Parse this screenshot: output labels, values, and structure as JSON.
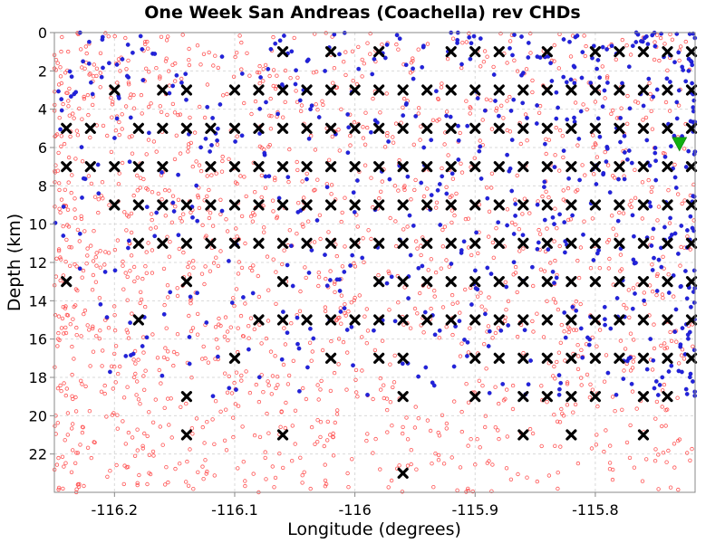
{
  "chart_data": {
    "type": "scatter",
    "title": "One Week San Andreas (Coachella) rev CHDs",
    "xlabel": "Longitude (degrees)",
    "ylabel": "Depth (km)",
    "xlim": [
      -116.25,
      -115.717
    ],
    "ylim": [
      0,
      24
    ],
    "y_inverted": true,
    "grid": true,
    "x_ticks": [
      -116.2,
      -116.1,
      -116,
      -115.9,
      -115.8
    ],
    "x_tick_labels": [
      "-116.2",
      "-116.1",
      "-116",
      "-115.9",
      "-115.8"
    ],
    "y_ticks": [
      0,
      2,
      4,
      6,
      8,
      10,
      12,
      14,
      16,
      18,
      20,
      22
    ],
    "y_tick_labels": [
      "0",
      "2",
      "4",
      "6",
      "8",
      "10",
      "12",
      "14",
      "16",
      "18",
      "20",
      "22"
    ],
    "series": [
      {
        "marker": "x",
        "color": "#000000",
        "points": [
          [
            -116.06,
            1
          ],
          [
            -116.02,
            1
          ],
          [
            -115.98,
            1
          ],
          [
            -115.92,
            1
          ],
          [
            -115.9,
            1
          ],
          [
            -115.88,
            1
          ],
          [
            -115.84,
            1
          ],
          [
            -115.8,
            1
          ],
          [
            -115.78,
            1
          ],
          [
            -115.76,
            1
          ],
          [
            -115.74,
            1
          ],
          [
            -115.72,
            1
          ],
          [
            -116.2,
            3
          ],
          [
            -116.16,
            3
          ],
          [
            -116.14,
            3
          ],
          [
            -116.1,
            3
          ],
          [
            -116.08,
            3
          ],
          [
            -116.06,
            3
          ],
          [
            -116.04,
            3
          ],
          [
            -116.02,
            3
          ],
          [
            -116,
            3
          ],
          [
            -115.98,
            3
          ],
          [
            -115.96,
            3
          ],
          [
            -115.94,
            3
          ],
          [
            -115.92,
            3
          ],
          [
            -115.9,
            3
          ],
          [
            -115.88,
            3
          ],
          [
            -115.86,
            3
          ],
          [
            -115.84,
            3
          ],
          [
            -115.82,
            3
          ],
          [
            -115.8,
            3
          ],
          [
            -115.78,
            3
          ],
          [
            -115.76,
            3
          ],
          [
            -115.74,
            3
          ],
          [
            -115.72,
            3
          ],
          [
            -116.24,
            5
          ],
          [
            -116.22,
            5
          ],
          [
            -116.18,
            5
          ],
          [
            -116.16,
            5
          ],
          [
            -116.14,
            5
          ],
          [
            -116.12,
            5
          ],
          [
            -116.1,
            5
          ],
          [
            -116.08,
            5
          ],
          [
            -116.06,
            5
          ],
          [
            -116.04,
            5
          ],
          [
            -116.02,
            5
          ],
          [
            -116,
            5
          ],
          [
            -115.98,
            5
          ],
          [
            -115.96,
            5
          ],
          [
            -115.94,
            5
          ],
          [
            -115.92,
            5
          ],
          [
            -115.9,
            5
          ],
          [
            -115.88,
            5
          ],
          [
            -115.86,
            5
          ],
          [
            -115.84,
            5
          ],
          [
            -115.82,
            5
          ],
          [
            -115.8,
            5
          ],
          [
            -115.78,
            5
          ],
          [
            -115.76,
            5
          ],
          [
            -115.74,
            5
          ],
          [
            -115.72,
            5
          ],
          [
            -116.24,
            7
          ],
          [
            -116.22,
            7
          ],
          [
            -116.2,
            7
          ],
          [
            -116.18,
            7
          ],
          [
            -116.16,
            7
          ],
          [
            -116.12,
            7
          ],
          [
            -116.1,
            7
          ],
          [
            -116.08,
            7
          ],
          [
            -116.06,
            7
          ],
          [
            -116.04,
            7
          ],
          [
            -116.02,
            7
          ],
          [
            -116,
            7
          ],
          [
            -115.98,
            7
          ],
          [
            -115.96,
            7
          ],
          [
            -115.94,
            7
          ],
          [
            -115.92,
            7
          ],
          [
            -115.9,
            7
          ],
          [
            -115.88,
            7
          ],
          [
            -115.86,
            7
          ],
          [
            -115.84,
            7
          ],
          [
            -115.82,
            7
          ],
          [
            -115.8,
            7
          ],
          [
            -115.78,
            7
          ],
          [
            -115.76,
            7
          ],
          [
            -115.74,
            7
          ],
          [
            -115.72,
            7
          ],
          [
            -116.2,
            9
          ],
          [
            -116.18,
            9
          ],
          [
            -116.16,
            9
          ],
          [
            -116.14,
            9
          ],
          [
            -116.12,
            9
          ],
          [
            -116.1,
            9
          ],
          [
            -116.08,
            9
          ],
          [
            -116.06,
            9
          ],
          [
            -116.04,
            9
          ],
          [
            -116.02,
            9
          ],
          [
            -116,
            9
          ],
          [
            -115.98,
            9
          ],
          [
            -115.96,
            9
          ],
          [
            -115.94,
            9
          ],
          [
            -115.92,
            9
          ],
          [
            -115.9,
            9
          ],
          [
            -115.88,
            9
          ],
          [
            -115.86,
            9
          ],
          [
            -115.84,
            9
          ],
          [
            -115.82,
            9
          ],
          [
            -115.8,
            9
          ],
          [
            -115.78,
            9
          ],
          [
            -115.76,
            9
          ],
          [
            -115.74,
            9
          ],
          [
            -115.72,
            9
          ],
          [
            -116.18,
            11
          ],
          [
            -116.16,
            11
          ],
          [
            -116.14,
            11
          ],
          [
            -116.12,
            11
          ],
          [
            -116.1,
            11
          ],
          [
            -116.08,
            11
          ],
          [
            -116.06,
            11
          ],
          [
            -116.04,
            11
          ],
          [
            -116.02,
            11
          ],
          [
            -116,
            11
          ],
          [
            -115.98,
            11
          ],
          [
            -115.96,
            11
          ],
          [
            -115.94,
            11
          ],
          [
            -115.92,
            11
          ],
          [
            -115.9,
            11
          ],
          [
            -115.88,
            11
          ],
          [
            -115.86,
            11
          ],
          [
            -115.84,
            11
          ],
          [
            -115.82,
            11
          ],
          [
            -115.8,
            11
          ],
          [
            -115.78,
            11
          ],
          [
            -115.76,
            11
          ],
          [
            -115.74,
            11
          ],
          [
            -115.72,
            11
          ],
          [
            -116.24,
            13
          ],
          [
            -116.14,
            13
          ],
          [
            -116.06,
            13
          ],
          [
            -115.98,
            13
          ],
          [
            -115.96,
            13
          ],
          [
            -115.94,
            13
          ],
          [
            -115.92,
            13
          ],
          [
            -115.9,
            13
          ],
          [
            -115.88,
            13
          ],
          [
            -115.86,
            13
          ],
          [
            -115.84,
            13
          ],
          [
            -115.82,
            13
          ],
          [
            -115.8,
            13
          ],
          [
            -115.78,
            13
          ],
          [
            -115.76,
            13
          ],
          [
            -115.74,
            13
          ],
          [
            -115.72,
            13
          ],
          [
            -116.18,
            15
          ],
          [
            -116.08,
            15
          ],
          [
            -116.06,
            15
          ],
          [
            -116.04,
            15
          ],
          [
            -116.02,
            15
          ],
          [
            -116,
            15
          ],
          [
            -115.98,
            15
          ],
          [
            -115.96,
            15
          ],
          [
            -115.94,
            15
          ],
          [
            -115.92,
            15
          ],
          [
            -115.9,
            15
          ],
          [
            -115.88,
            15
          ],
          [
            -115.86,
            15
          ],
          [
            -115.84,
            15
          ],
          [
            -115.82,
            15
          ],
          [
            -115.8,
            15
          ],
          [
            -115.78,
            15
          ],
          [
            -115.76,
            15
          ],
          [
            -115.74,
            15
          ],
          [
            -115.72,
            15
          ],
          [
            -116.1,
            17
          ],
          [
            -116.02,
            17
          ],
          [
            -115.98,
            17
          ],
          [
            -115.96,
            17
          ],
          [
            -115.9,
            17
          ],
          [
            -115.88,
            17
          ],
          [
            -115.86,
            17
          ],
          [
            -115.84,
            17
          ],
          [
            -115.82,
            17
          ],
          [
            -115.8,
            17
          ],
          [
            -115.78,
            17
          ],
          [
            -115.76,
            17
          ],
          [
            -115.74,
            17
          ],
          [
            -115.72,
            17
          ],
          [
            -116.14,
            19
          ],
          [
            -115.96,
            19
          ],
          [
            -115.9,
            19
          ],
          [
            -115.86,
            19
          ],
          [
            -115.84,
            19
          ],
          [
            -115.82,
            19
          ],
          [
            -115.8,
            19
          ],
          [
            -115.76,
            19
          ],
          [
            -115.74,
            19
          ],
          [
            -116.14,
            21
          ],
          [
            -116.06,
            21
          ],
          [
            -115.86,
            21
          ],
          [
            -115.82,
            21
          ],
          [
            -115.76,
            21
          ],
          [
            -115.96,
            23
          ]
        ]
      },
      {
        "marker": "dot",
        "color": "#2222dd",
        "count": 620,
        "generated": true,
        "seed": 7
      },
      {
        "marker": "circle",
        "color": "#ff5555",
        "count": 1700,
        "generated": true,
        "seed": 13
      },
      {
        "marker": "triangle-down",
        "color": "#10b010",
        "points": [
          [
            -115.73,
            5.8
          ]
        ]
      }
    ]
  }
}
